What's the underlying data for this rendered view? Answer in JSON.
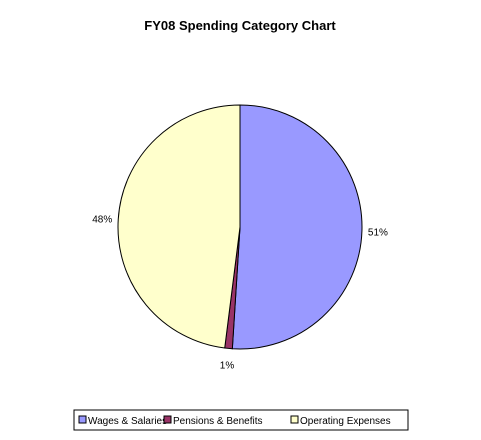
{
  "chart_data": {
    "type": "pie",
    "title": "FY08 Spending Category Chart",
    "slices": [
      {
        "label": "Wages & Salaries",
        "value": 51,
        "display": "51%",
        "color": "#9999ff"
      },
      {
        "label": "Pensions & Benefits",
        "value": 1,
        "display": "1%",
        "color": "#993366"
      },
      {
        "label": "Operating Expenses",
        "value": 48,
        "display": "48%",
        "color": "#ffffcc"
      }
    ],
    "legend_position": "bottom"
  }
}
